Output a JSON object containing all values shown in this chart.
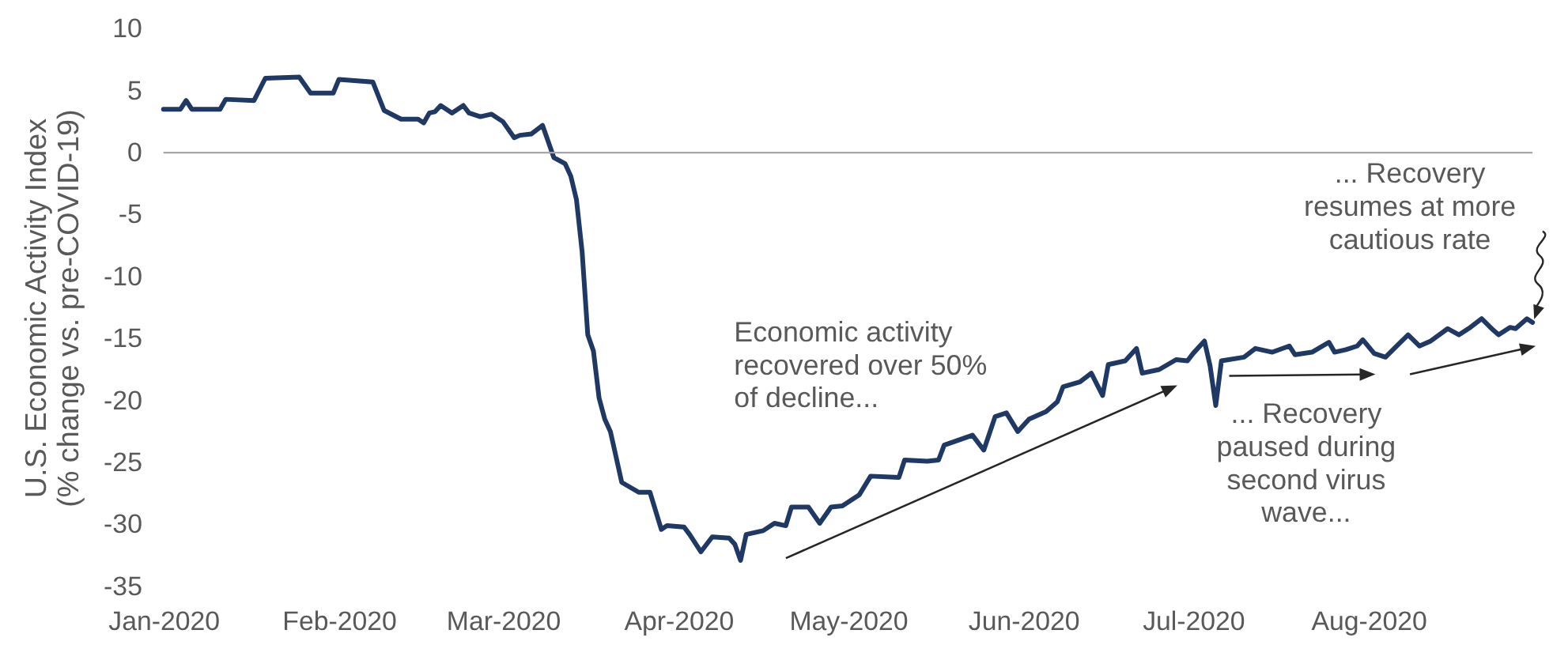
{
  "chart_data": {
    "type": "line",
    "ylabel": "U.S. Economic Activity Index (% change vs. pre-COVID-19)",
    "x": [
      "2020-01-01",
      "2020-01-04",
      "2020-01-05",
      "2020-01-06",
      "2020-01-11",
      "2020-01-12",
      "2020-01-17",
      "2020-01-19",
      "2020-01-25",
      "2020-01-27",
      "2020-01-31",
      "2020-02-01",
      "2020-02-07",
      "2020-02-09",
      "2020-02-12",
      "2020-02-15",
      "2020-02-16",
      "2020-02-17",
      "2020-02-18",
      "2020-02-19",
      "2020-02-21",
      "2020-02-23",
      "2020-02-24",
      "2020-02-26",
      "2020-02-28",
      "2020-03-01",
      "2020-03-03",
      "2020-03-04",
      "2020-03-06",
      "2020-03-08",
      "2020-03-10",
      "2020-03-12",
      "2020-03-13",
      "2020-03-14",
      "2020-03-15",
      "2020-03-16",
      "2020-03-17",
      "2020-03-18",
      "2020-03-19",
      "2020-03-20",
      "2020-03-22",
      "2020-03-25",
      "2020-03-27",
      "2020-03-29",
      "2020-03-30",
      "2020-04-02",
      "2020-04-03",
      "2020-04-05",
      "2020-04-07",
      "2020-04-10",
      "2020-04-11",
      "2020-04-12",
      "2020-04-13",
      "2020-04-16",
      "2020-04-18",
      "2020-04-20",
      "2020-04-21",
      "2020-04-24",
      "2020-04-26",
      "2020-04-28",
      "2020-04-30",
      "2020-05-03",
      "2020-05-05",
      "2020-05-10",
      "2020-05-11",
      "2020-05-15",
      "2020-05-17",
      "2020-05-18",
      "2020-05-23",
      "2020-05-25",
      "2020-05-27",
      "2020-05-29",
      "2020-05-31",
      "2020-06-02",
      "2020-06-05",
      "2020-06-07",
      "2020-06-08",
      "2020-06-11",
      "2020-06-13",
      "2020-06-15",
      "2020-06-16",
      "2020-06-19",
      "2020-06-21",
      "2020-06-22",
      "2020-06-25",
      "2020-06-28",
      "2020-06-30",
      "2020-07-01",
      "2020-07-03",
      "2020-07-04",
      "2020-07-05",
      "2020-07-06",
      "2020-07-10",
      "2020-07-12",
      "2020-07-15",
      "2020-07-18",
      "2020-07-19",
      "2020-07-22",
      "2020-07-25",
      "2020-07-26",
      "2020-07-28",
      "2020-07-30",
      "2020-07-31",
      "2020-08-02",
      "2020-08-04",
      "2020-08-06",
      "2020-08-08",
      "2020-08-10",
      "2020-08-12",
      "2020-08-15",
      "2020-08-17",
      "2020-08-19",
      "2020-08-21",
      "2020-08-23",
      "2020-08-24",
      "2020-08-26",
      "2020-08-27",
      "2020-08-29",
      "2020-08-30"
    ],
    "series": [
      {
        "color": "#1f3864",
        "values": [
          3.5,
          3.5,
          4.2,
          3.5,
          3.5,
          4.3,
          4.2,
          6.0,
          6.1,
          4.8,
          4.8,
          5.9,
          5.7,
          3.4,
          2.7,
          2.7,
          2.4,
          3.2,
          3.3,
          3.8,
          3.2,
          3.8,
          3.2,
          2.9,
          3.1,
          2.5,
          1.2,
          1.4,
          1.5,
          2.2,
          -0.4,
          -0.9,
          -1.9,
          -3.8,
          -8.0,
          -14.7,
          -16.0,
          -19.8,
          -21.5,
          -22.5,
          -26.6,
          -27.4,
          -27.4,
          -30.4,
          -30.1,
          -30.2,
          -30.8,
          -32.2,
          -31.0,
          -31.1,
          -31.6,
          -32.9,
          -30.8,
          -30.5,
          -29.9,
          -30.1,
          -28.6,
          -28.6,
          -29.9,
          -28.6,
          -28.5,
          -27.6,
          -26.1,
          -26.2,
          -24.8,
          -24.9,
          -24.8,
          -23.6,
          -22.8,
          -24.0,
          -21.3,
          -21.0,
          -22.5,
          -21.5,
          -20.9,
          -20.1,
          -18.9,
          -18.5,
          -17.8,
          -19.6,
          -17.1,
          -16.8,
          -15.8,
          -17.8,
          -17.5,
          -16.7,
          -16.8,
          -16.2,
          -15.2,
          -17.2,
          -20.4,
          -16.8,
          -16.5,
          -15.8,
          -16.1,
          -15.6,
          -16.3,
          -16.1,
          -15.3,
          -16.1,
          -15.9,
          -15.6,
          -15.1,
          -16.2,
          -16.5,
          -15.6,
          -14.7,
          -15.6,
          -15.2,
          -14.2,
          -14.7,
          -14.1,
          -13.4,
          -14.3,
          -14.7,
          -14.1,
          -14.2,
          -13.4,
          -13.7
        ]
      }
    ],
    "xlim": [
      "2020-01-01",
      "2020-08-30"
    ],
    "xticks": [
      {
        "value": "2020-01-01",
        "label": "Jan-2020"
      },
      {
        "value": "2020-02-01",
        "label": "Feb-2020"
      },
      {
        "value": "2020-03-01",
        "label": "Mar-2020"
      },
      {
        "value": "2020-04-01",
        "label": "Apr-2020"
      },
      {
        "value": "2020-05-01",
        "label": "May-2020"
      },
      {
        "value": "2020-06-01",
        "label": "Jun-2020"
      },
      {
        "value": "2020-07-01",
        "label": "Jul-2020"
      },
      {
        "value": "2020-08-01",
        "label": "Aug-2020"
      }
    ],
    "ylim": [
      -35,
      10
    ],
    "yticks": [
      -35,
      -30,
      -25,
      -20,
      -15,
      -10,
      -5,
      0,
      5,
      10
    ],
    "ref_lines": [
      {
        "axis": "y",
        "value": 0,
        "color": "#a6a6a6"
      }
    ],
    "annotations": [
      "Economic activity recovered over 50% of decline...",
      "... Recovery paused during second virus wave...",
      "... Recovery resumes at more cautious rate"
    ]
  }
}
